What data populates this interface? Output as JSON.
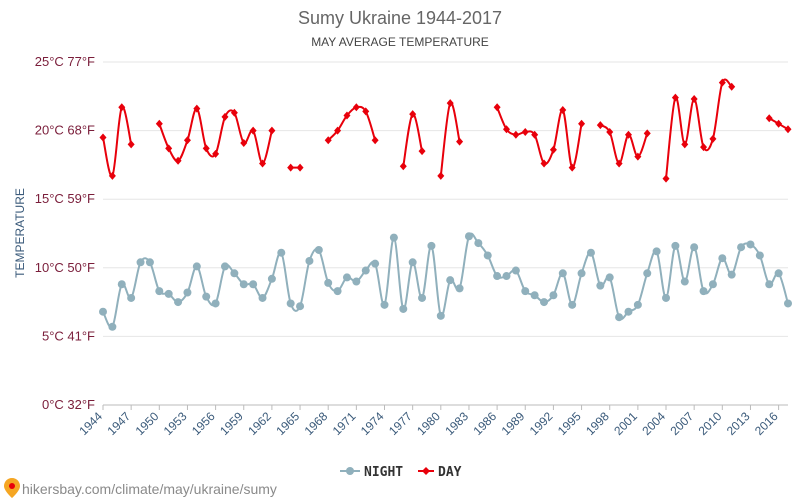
{
  "chart_data": {
    "type": "line",
    "title": "Sumy Ukraine 1944-2017",
    "subtitle": "MAY AVERAGE TEMPERATURE",
    "ylabel": "TEMPERATURE",
    "xlabel": "",
    "ylim": [
      0,
      25
    ],
    "xlim": [
      1944,
      2017
    ],
    "yticks": [
      {
        "value": 0,
        "label": "0°C 32°F"
      },
      {
        "value": 5,
        "label": "5°C 41°F"
      },
      {
        "value": 10,
        "label": "10°C 50°F"
      },
      {
        "value": 15,
        "label": "15°C 59°F"
      },
      {
        "value": 20,
        "label": "20°C 68°F"
      },
      {
        "value": 25,
        "label": "25°C 77°F"
      }
    ],
    "xticks": [
      "1944",
      "1947",
      "1950",
      "1953",
      "1956",
      "1959",
      "1962",
      "1965",
      "1968",
      "1971",
      "1974",
      "1977",
      "1980",
      "1983",
      "1986",
      "1989",
      "1992",
      "1995",
      "1998",
      "2001",
      "2004",
      "2007",
      "2010",
      "2013",
      "2016"
    ],
    "grid": true,
    "legend_position": "bottom",
    "x": [
      1944,
      1945,
      1946,
      1947,
      1948,
      1949,
      1950,
      1951,
      1952,
      1953,
      1954,
      1955,
      1956,
      1957,
      1958,
      1959,
      1960,
      1961,
      1962,
      1963,
      1964,
      1965,
      1966,
      1967,
      1968,
      1969,
      1970,
      1971,
      1972,
      1973,
      1974,
      1975,
      1976,
      1977,
      1978,
      1979,
      1980,
      1981,
      1982,
      1983,
      1984,
      1985,
      1986,
      1987,
      1988,
      1989,
      1990,
      1991,
      1992,
      1993,
      1994,
      1995,
      1996,
      1997,
      1998,
      1999,
      2000,
      2001,
      2002,
      2003,
      2004,
      2005,
      2006,
      2007,
      2008,
      2009,
      2010,
      2011,
      2012,
      2013,
      2014,
      2015,
      2016,
      2017
    ],
    "series": [
      {
        "name": "NIGHT",
        "color": "#90b0bc",
        "values": [
          6.8,
          5.7,
          8.8,
          7.8,
          10.4,
          10.4,
          8.3,
          8.1,
          7.5,
          8.2,
          10.1,
          7.9,
          7.4,
          10.1,
          9.6,
          8.8,
          8.8,
          7.8,
          9.2,
          11.1,
          7.4,
          7.2,
          10.5,
          11.3,
          8.9,
          8.3,
          9.3,
          9.0,
          9.8,
          10.3,
          7.3,
          12.2,
          7.0,
          10.4,
          7.8,
          11.6,
          6.5,
          9.1,
          8.5,
          12.3,
          11.8,
          10.9,
          9.4,
          9.4,
          9.8,
          8.3,
          8.0,
          7.5,
          8.0,
          9.6,
          7.3,
          9.6,
          11.1,
          8.7,
          9.3,
          6.4,
          6.8,
          7.3,
          9.6,
          11.2,
          7.8,
          11.6,
          9.0,
          11.5,
          8.3,
          8.8,
          10.7,
          9.5,
          11.5,
          11.7,
          10.9,
          8.8,
          9.6,
          7.4
        ]
      },
      {
        "name": "DAY",
        "color": "#e8000b",
        "values": [
          19.5,
          16.7,
          21.7,
          19.0,
          null,
          null,
          20.5,
          18.7,
          17.8,
          19.3,
          21.6,
          18.7,
          18.3,
          21.0,
          21.3,
          19.1,
          20.0,
          17.6,
          20.0,
          null,
          17.3,
          17.3,
          null,
          null,
          19.3,
          20.0,
          21.1,
          21.7,
          21.4,
          19.3,
          null,
          null,
          17.4,
          21.2,
          18.5,
          null,
          16.7,
          22.0,
          19.2,
          null,
          null,
          null,
          21.7,
          20.1,
          19.7,
          19.9,
          19.7,
          17.6,
          18.6,
          21.5,
          17.3,
          20.5,
          null,
          20.4,
          19.9,
          17.6,
          19.7,
          18.1,
          19.8,
          null,
          16.5,
          22.4,
          19.0,
          22.3,
          18.8,
          19.4,
          23.5,
          23.2,
          null,
          null,
          null,
          20.9,
          20.5,
          20.1
        ]
      }
    ]
  },
  "footer": {
    "text": "hikersbay.com/climate/may/ukraine/sumy",
    "icon": "location-pin-icon"
  }
}
